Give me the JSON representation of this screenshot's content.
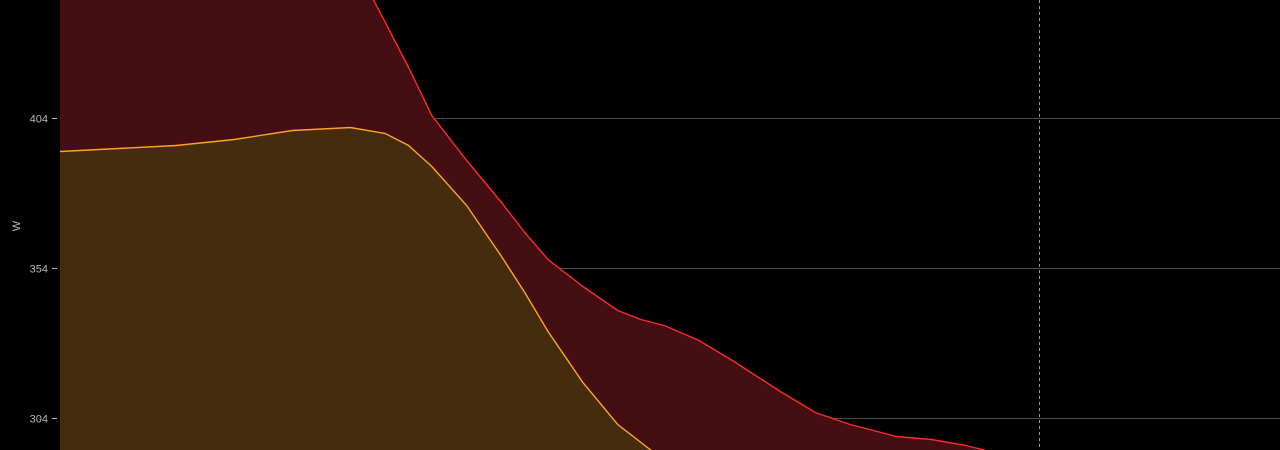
{
  "chart_data": {
    "type": "area",
    "ylabel": "W",
    "yticks": [
      404,
      354,
      304
    ],
    "ylim": [
      293.5,
      443.5
    ],
    "xlim": [
      0,
      1.05
    ],
    "grid": true,
    "marker_x": 0.843,
    "x": [
      0.0,
      0.05,
      0.1,
      0.15,
      0.2,
      0.25,
      0.28,
      0.3,
      0.32,
      0.35,
      0.38,
      0.4,
      0.42,
      0.45,
      0.48,
      0.5,
      0.52,
      0.55,
      0.58,
      0.6,
      0.62,
      0.65,
      0.68,
      0.7,
      0.72,
      0.75,
      0.78,
      0.8
    ],
    "series": [
      {
        "color": "#ff2a2a",
        "fill": "#440e12",
        "values": [
          465,
          465,
          465,
          465,
          465,
          458,
          436,
          421,
          405,
          390,
          376,
          366,
          357,
          348,
          340,
          337,
          335,
          330,
          323,
          318,
          313,
          306,
          302,
          300,
          298,
          297,
          295,
          293
        ]
      },
      {
        "color": "#ffa420",
        "fill": "#432c0e",
        "values": [
          393,
          394,
          395,
          397,
          400,
          401,
          399,
          395,
          388,
          375,
          358,
          346,
          333,
          316,
          302,
          296,
          290,
          288,
          287,
          287,
          287,
          287,
          287,
          287,
          287,
          287,
          287,
          287
        ]
      }
    ]
  }
}
